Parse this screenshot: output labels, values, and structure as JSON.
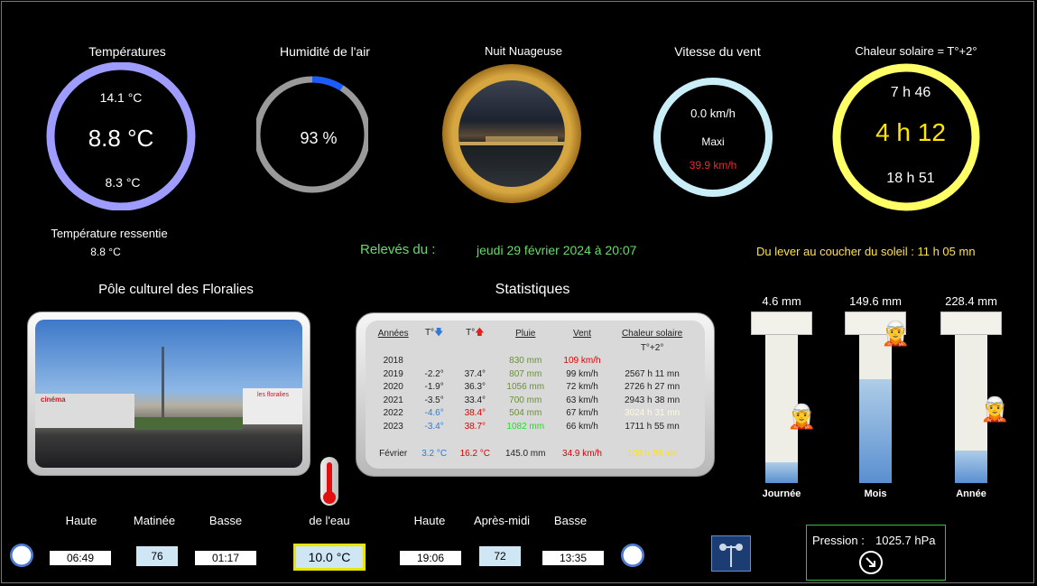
{
  "temperature": {
    "title": "Températures",
    "max": "14.1 °C",
    "current": "8.8 °C",
    "min": "8.3 °C",
    "feels_label": "Température ressentie",
    "feels_value": "8.8 °C",
    "ring_color": "#9f9cff"
  },
  "humidity": {
    "title": "Humidité de l'air",
    "value": "93 %",
    "percent": 93,
    "ring_color": "#9a9a9a",
    "fill_color": "#1a5cff"
  },
  "sky": {
    "title": "Nuit Nuageuse"
  },
  "wind": {
    "title": "Vitesse du vent",
    "current": "0.0 km/h",
    "max_label": "Maxi",
    "max_value": "39.9 km/h",
    "ring_color": "#c9eef8"
  },
  "sun": {
    "title": "Chaleur solaire = T°+2°",
    "sunrise": "7 h 46",
    "duration": "4 h 12",
    "sunset": "18 h 51",
    "ring_color": "#ffff66",
    "daylight": "Du lever au coucher du soleil :  11 h 05 mn"
  },
  "readings": {
    "label": "Relevés du :",
    "datetime": "jeudi 29 février  2024 à 20:07"
  },
  "location": {
    "title": "Pôle culturel des Floralies",
    "sign_cinema": "cinéma",
    "sign_floralies": "les floralies"
  },
  "stats": {
    "title": "Statistiques",
    "headers": {
      "year": "Années",
      "tmin": "T°",
      "tmax": "T°",
      "rain": "Pluie",
      "wind": "Vent",
      "sun": "Chaleur solaire",
      "sun_sub": "T°+2°"
    },
    "rows": [
      {
        "year": "2018",
        "tmin": "",
        "tmax": "",
        "rain": "830 mm",
        "wind": "109 km/h",
        "sun": ""
      },
      {
        "year": "2019",
        "tmin": "-2.2°",
        "tmax": "37.4°",
        "rain": "807 mm",
        "wind": "99 km/h",
        "sun": "2567 h 11 mn"
      },
      {
        "year": "2020",
        "tmin": "-1.9°",
        "tmax": "36.3°",
        "rain": "1056 mm",
        "wind": "72 km/h",
        "sun": "2726 h 27 mn"
      },
      {
        "year": "2021",
        "tmin": "-3.5°",
        "tmax": "33.4°",
        "rain": "700 mm",
        "wind": "63 km/h",
        "sun": "2943 h 38 mn"
      },
      {
        "year": "2022",
        "tmin": "-4.6°",
        "tmax": "38.4°",
        "rain": "504 mm",
        "wind": "67 km/h",
        "sun": "3024 h 31 mn"
      },
      {
        "year": "2023",
        "tmin": "-3.4°",
        "tmax": "38.7°",
        "rain": "1082 mm",
        "wind": "66 km/h",
        "sun": "1711 h 55 mn"
      }
    ],
    "month": {
      "label": "Février",
      "tmin": "3.2 °C",
      "tmax": "16.2 °C",
      "rain": "145.0 mm",
      "wind": "34.9 km/h",
      "sun": "100 h 38 mn"
    }
  },
  "rain": {
    "day": {
      "value": "4.6 mm",
      "label": "Journée",
      "fill": 0.14
    },
    "month": {
      "value": "149.6 mm",
      "label": "Mois",
      "fill": 0.7
    },
    "year": {
      "value": "228.4 mm",
      "label": "Année",
      "fill": 0.22
    }
  },
  "tides": {
    "morning": {
      "high_label": "Haute",
      "coef_label": "Matinée",
      "low_label": "Basse",
      "high": "06:49",
      "coef": "76",
      "low": "01:17"
    },
    "afternoon": {
      "high_label": "Haute",
      "coef_label": "Après-midi",
      "low_label": "Basse",
      "high": "19:06",
      "coef": "72",
      "low": "13:35"
    },
    "water_label": "de l'eau",
    "water_temp": "10.0 °C"
  },
  "pressure": {
    "label": "Pression :",
    "value": "1025.7 hPa",
    "trend_icon": "arrow-down-right-icon"
  }
}
